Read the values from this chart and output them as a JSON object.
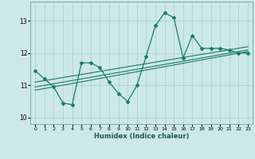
{
  "xlabel": "Humidex (Indice chaleur)",
  "ylabel": "",
  "bg_color": "#cce8e8",
  "grid_color": "#aacccc",
  "line_color": "#1a7a6a",
  "xlim": [
    -0.5,
    23.5
  ],
  "ylim": [
    9.8,
    13.6
  ],
  "yticks": [
    10,
    11,
    12,
    13
  ],
  "xticks": [
    0,
    1,
    2,
    3,
    4,
    5,
    6,
    7,
    8,
    9,
    10,
    11,
    12,
    13,
    14,
    15,
    16,
    17,
    18,
    19,
    20,
    21,
    22,
    23
  ],
  "series1_x": [
    0,
    1,
    2,
    3,
    4,
    5,
    6,
    7,
    8,
    9,
    10,
    11,
    12,
    13,
    14,
    15,
    16,
    17,
    18,
    19,
    20,
    21,
    22,
    23
  ],
  "series1_y": [
    11.45,
    11.2,
    10.95,
    10.45,
    10.4,
    11.7,
    11.7,
    11.55,
    11.1,
    10.75,
    10.5,
    11.0,
    11.9,
    12.85,
    13.25,
    13.1,
    11.85,
    12.55,
    12.15,
    12.15,
    12.15,
    12.1,
    12.0,
    12.0
  ],
  "line2_x": [
    0,
    23
  ],
  "line2_y": [
    10.85,
    12.05
  ],
  "line3_x": [
    0,
    23
  ],
  "line3_y": [
    10.95,
    12.1
  ],
  "line4_x": [
    0,
    23
  ],
  "line4_y": [
    11.1,
    12.2
  ]
}
